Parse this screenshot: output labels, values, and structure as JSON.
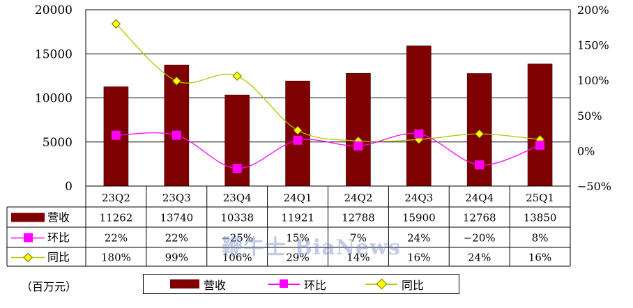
{
  "chart_data": {
    "type": "bar",
    "categories": [
      "23Q2",
      "23Q3",
      "23Q4",
      "24Q1",
      "24Q2",
      "24Q3",
      "24Q4",
      "25Q1"
    ],
    "ylim": [
      0,
      20000
    ],
    "y_ticks": [
      "20000",
      "15000",
      "10000",
      "5000",
      "0"
    ],
    "y2lim": [
      -0.5,
      2.0
    ],
    "y2_ticks": [
      "200%",
      "150%",
      "100%",
      "50%",
      "0%",
      "−50%"
    ],
    "series": [
      {
        "name": "营收",
        "kind": "bar",
        "color": "#7f0000",
        "values": [
          11262,
          13740,
          10338,
          11921,
          12788,
          15900,
          12768,
          13850
        ],
        "labels": [
          "11262",
          "13740",
          "10338",
          "11921",
          "12788",
          "15900",
          "12768",
          "13850"
        ]
      },
      {
        "name": "环比",
        "kind": "line",
        "axis": "right",
        "color": "#ff00ff",
        "marker": "square",
        "values": [
          0.22,
          0.22,
          -0.25,
          0.15,
          0.07,
          0.24,
          -0.2,
          0.08
        ],
        "labels": [
          "22%",
          "22%",
          "−25%",
          "15%",
          "7%",
          "24%",
          "−20%",
          "8%"
        ]
      },
      {
        "name": "同比",
        "kind": "line",
        "axis": "right",
        "color": "#b0c800",
        "marker": "diamond",
        "values": [
          1.8,
          0.99,
          1.06,
          0.29,
          0.14,
          0.16,
          0.24,
          0.16
        ],
        "labels": [
          "180%",
          "99%",
          "106%",
          "29%",
          "14%",
          "16%",
          "24%",
          "16%"
        ]
      }
    ],
    "legend": [
      "营收",
      "环比",
      "同比"
    ],
    "legend_position": "bottom",
    "grid": true
  },
  "unit_note": "（百万元）",
  "watermark": "鞭牛士 BiaNews"
}
